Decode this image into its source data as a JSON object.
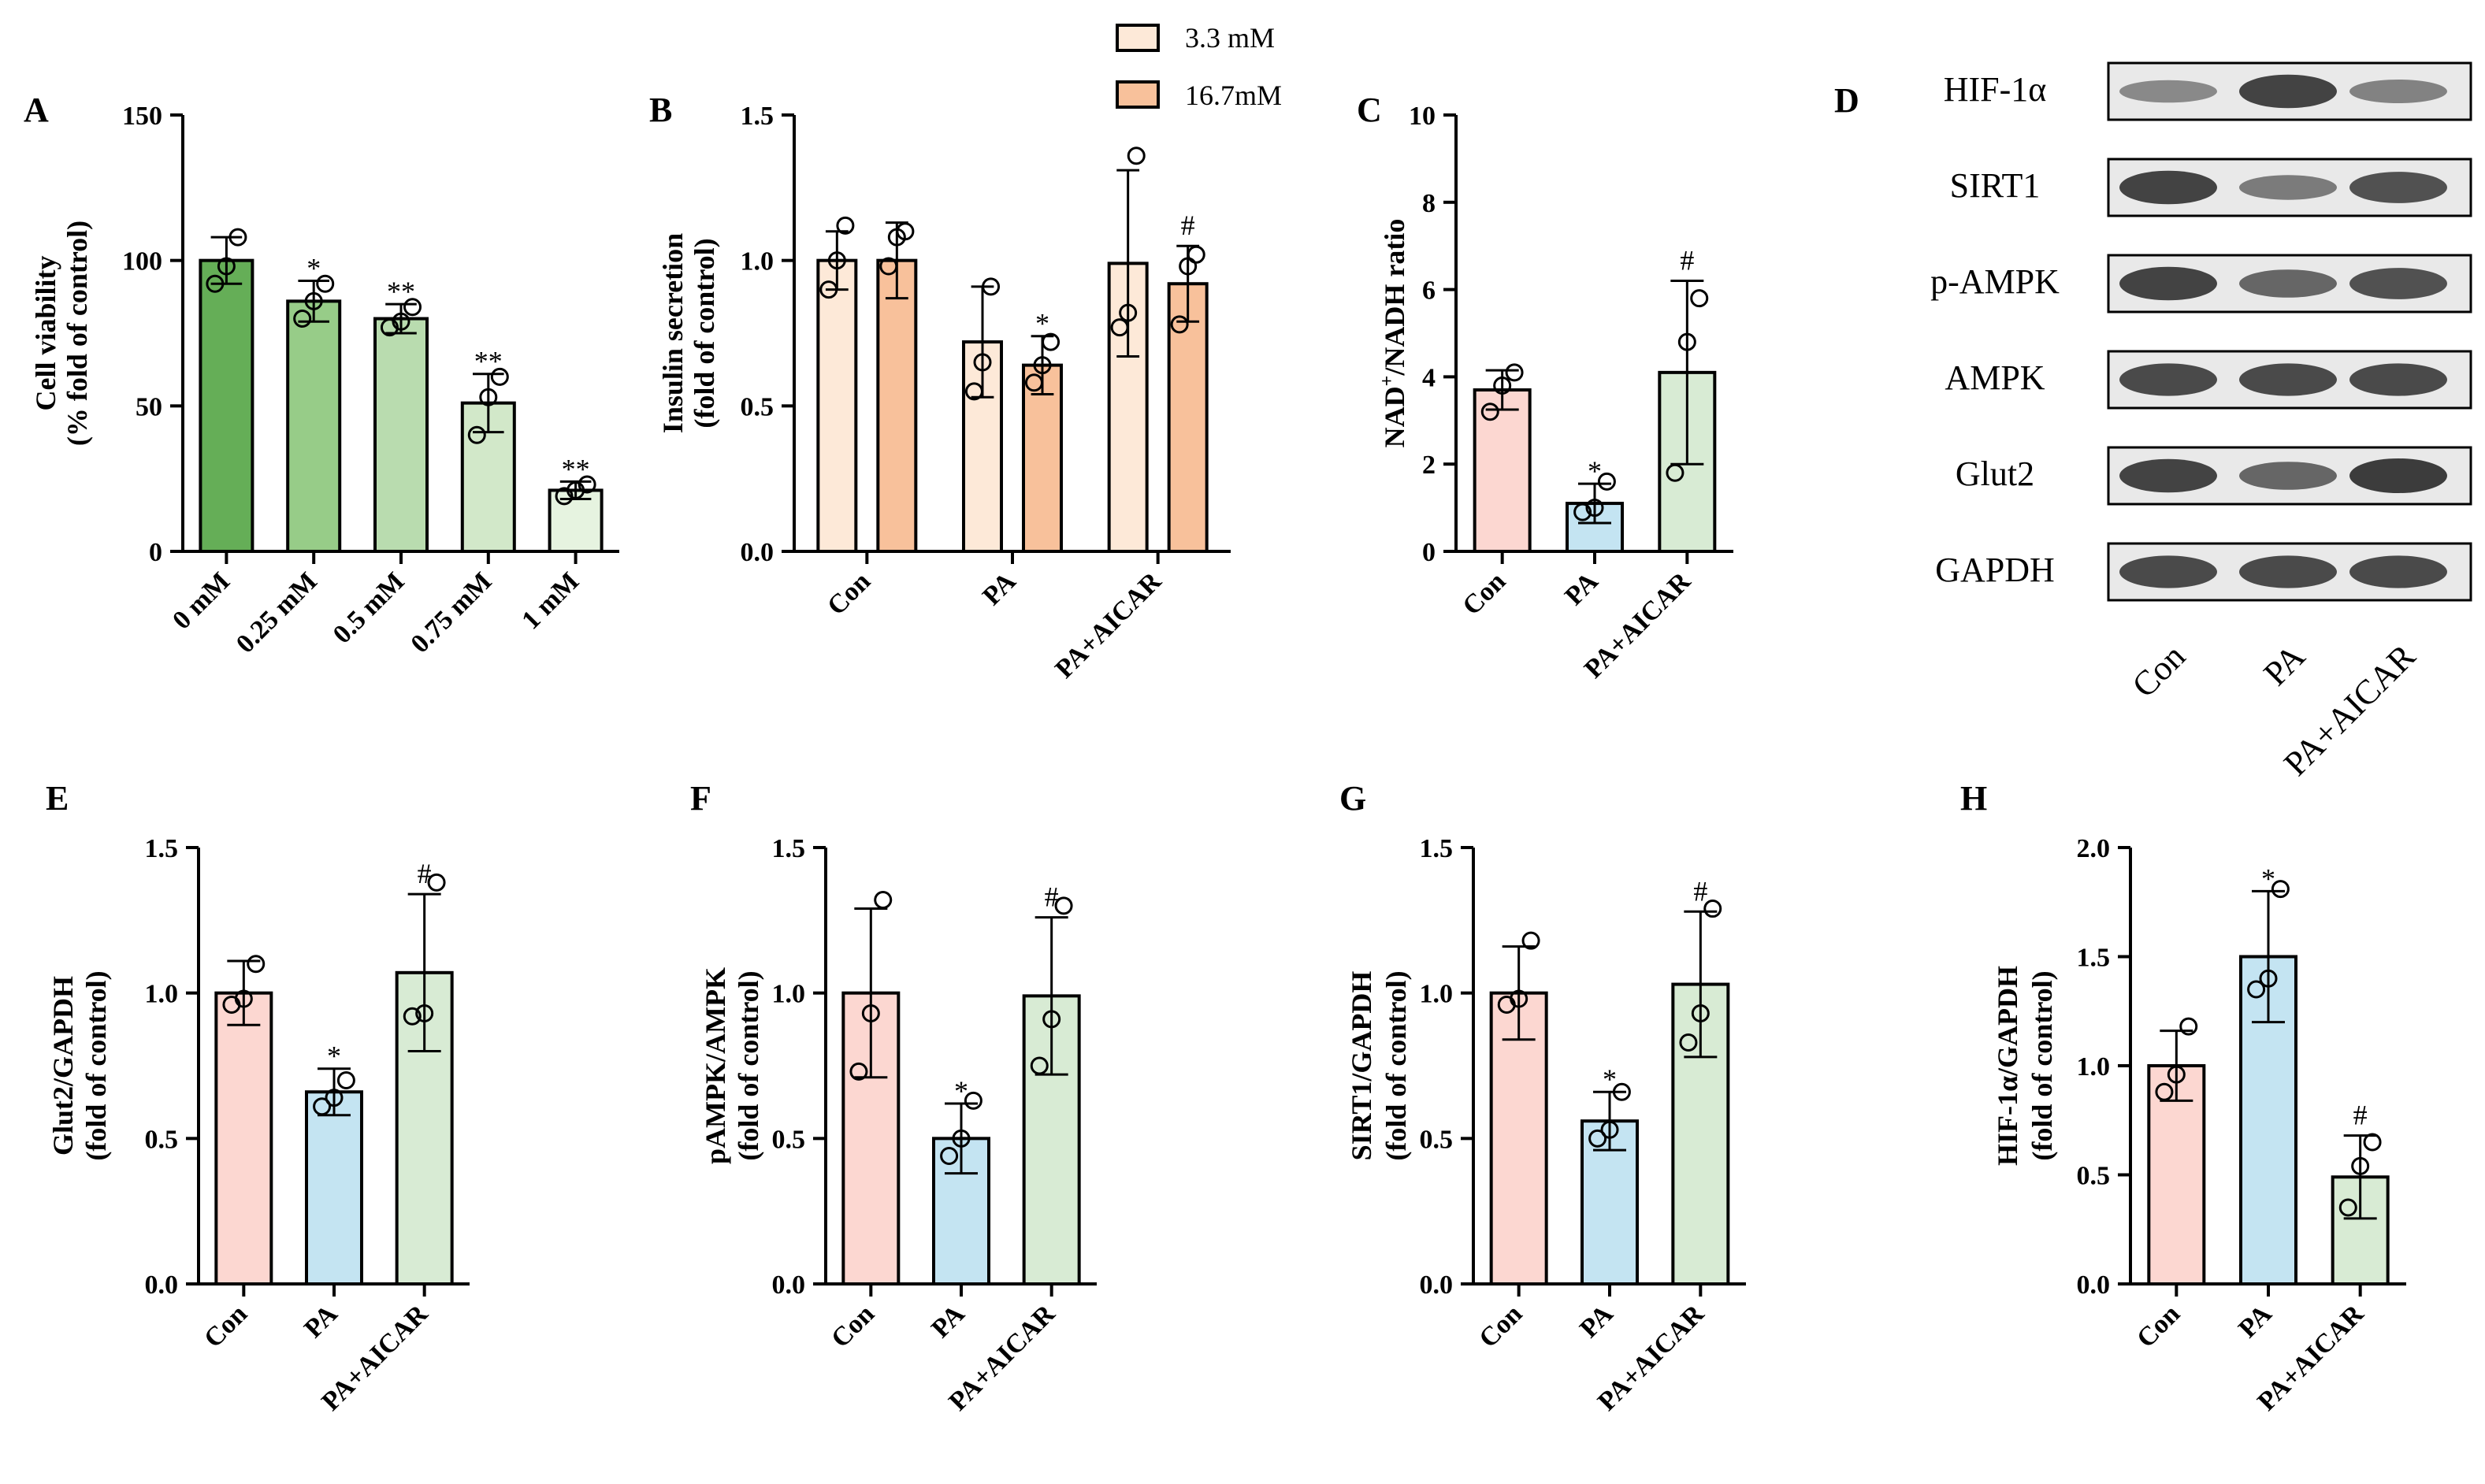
{
  "figure": {
    "colors": {
      "dark_green": "#65ae57",
      "green2": "#97cc88",
      "green3": "#b9dcaf",
      "green4": "#d2e8c9",
      "green5": "#e6f3e0",
      "cream": "#fde9d8",
      "peach": "#f8c19b",
      "pink": "#fcd7d1",
      "blue": "#c4e4f2",
      "mint": "#d8ebd4"
    },
    "legend": {
      "items": [
        {
          "label": "3.3 mM",
          "color": "#fde9d8"
        },
        {
          "label": "16.7mM",
          "color": "#f8c19b"
        }
      ]
    },
    "blot": {
      "letter": "D",
      "rows": [
        "HIF-1α",
        "SIRT1",
        "p-AMPK",
        "AMPK",
        "Glut2",
        "GAPDH"
      ],
      "lanes": [
        "Con",
        "PA",
        "PA+AICAR"
      ],
      "intensity": [
        [
          0.45,
          0.95,
          0.5
        ],
        [
          0.95,
          0.55,
          0.85
        ],
        [
          0.95,
          0.7,
          0.85
        ],
        [
          0.9,
          0.9,
          0.9
        ],
        [
          0.95,
          0.7,
          1.0
        ],
        [
          0.9,
          0.9,
          0.9
        ]
      ]
    }
  },
  "chart_data": [
    {
      "id": "A",
      "letter": "A",
      "type": "bar",
      "ylabel": [
        "Cell viability",
        "(% fold of control)"
      ],
      "ylim": [
        0,
        150
      ],
      "yticks": [
        0,
        50,
        100,
        150
      ],
      "tick_decimals": 0,
      "categories": [
        "0 mM",
        "0.25 mM",
        "0.5 mM",
        "0.75 mM",
        "1 mM"
      ],
      "series": [
        {
          "name": "viability",
          "values": [
            100,
            86,
            80,
            51,
            21
          ],
          "sd": [
            8,
            7,
            5,
            10,
            3
          ],
          "colors": [
            "#65ae57",
            "#97cc88",
            "#b9dcaf",
            "#d2e8c9",
            "#e6f3e0"
          ]
        }
      ],
      "points": [
        [
          92,
          98,
          108
        ],
        [
          80,
          86,
          92
        ],
        [
          77,
          79,
          84
        ],
        [
          40,
          53,
          60
        ],
        [
          19,
          21,
          23
        ]
      ],
      "annotations": [
        "",
        "*",
        "**",
        "**",
        "**"
      ]
    },
    {
      "id": "B",
      "letter": "B",
      "type": "bar",
      "ylabel": [
        "Insulin secretion",
        "(fold of control)"
      ],
      "ylim": [
        0,
        1.5
      ],
      "yticks": [
        0.0,
        0.5,
        1.0,
        1.5
      ],
      "tick_decimals": 1,
      "categories": [
        "Con",
        "PA",
        "PA+AICAR"
      ],
      "series": [
        {
          "name": "3.3 mM",
          "values": [
            1.0,
            0.72,
            0.99
          ],
          "sd": [
            0.1,
            0.19,
            0.32
          ],
          "color": "#fde9d8"
        },
        {
          "name": "16.7mM",
          "values": [
            1.0,
            0.64,
            0.92
          ],
          "sd": [
            0.13,
            0.1,
            0.13
          ],
          "color": "#f8c19b"
        }
      ],
      "points": [
        [
          [
            0.9,
            1.0,
            1.12
          ],
          [
            0.55,
            0.65,
            0.91
          ],
          [
            0.77,
            0.82,
            1.36
          ]
        ],
        [
          [
            0.98,
            1.08,
            1.1
          ],
          [
            0.58,
            0.64,
            0.72
          ],
          [
            0.78,
            0.98,
            1.02
          ]
        ]
      ],
      "annotations": [
        [
          "",
          "",
          ""
        ],
        [
          "",
          "*",
          "#"
        ]
      ]
    },
    {
      "id": "C",
      "letter": "C",
      "type": "bar",
      "ylabel": [
        "NAD⁺/NADH ratio"
      ],
      "ylim": [
        0,
        10
      ],
      "yticks": [
        0,
        2,
        4,
        6,
        8,
        10
      ],
      "tick_decimals": 0,
      "categories": [
        "Con",
        "PA",
        "PA+AICAR"
      ],
      "series": [
        {
          "name": "NAD+/NADH",
          "values": [
            3.7,
            1.1,
            4.1
          ],
          "sd": [
            0.45,
            0.45,
            2.1
          ],
          "colors": [
            "#fcd7d1",
            "#c4e4f2",
            "#d8ebd4"
          ]
        }
      ],
      "points": [
        [
          3.2,
          3.8,
          4.1
        ],
        [
          0.9,
          1.0,
          1.6
        ],
        [
          1.8,
          4.8,
          5.8
        ]
      ],
      "annotations": [
        "",
        "*",
        "#"
      ]
    },
    {
      "id": "E",
      "letter": "E",
      "type": "bar",
      "ylabel": [
        "Glut2/GAPDH",
        "(fold of control)"
      ],
      "ylim": [
        0,
        1.5
      ],
      "yticks": [
        0.0,
        0.5,
        1.0,
        1.5
      ],
      "tick_decimals": 1,
      "categories": [
        "Con",
        "PA",
        "PA+AICAR"
      ],
      "series": [
        {
          "name": "Glut2/GAPDH",
          "values": [
            1.0,
            0.66,
            1.07
          ],
          "sd": [
            0.11,
            0.08,
            0.27
          ],
          "colors": [
            "#fcd7d1",
            "#c4e4f2",
            "#d8ebd4"
          ]
        }
      ],
      "points": [
        [
          0.96,
          0.98,
          1.1
        ],
        [
          0.61,
          0.64,
          0.7
        ],
        [
          0.92,
          0.93,
          1.38
        ]
      ],
      "annotations": [
        "",
        "*",
        "#"
      ]
    },
    {
      "id": "F",
      "letter": "F",
      "type": "bar",
      "ylabel": [
        "pAMPK/AMPK",
        "(fold of control)"
      ],
      "ylim": [
        0,
        1.5
      ],
      "yticks": [
        0.0,
        0.5,
        1.0,
        1.5
      ],
      "tick_decimals": 1,
      "categories": [
        "Con",
        "PA",
        "PA+AICAR"
      ],
      "series": [
        {
          "name": "pAMPK/AMPK",
          "values": [
            1.0,
            0.5,
            0.99
          ],
          "sd": [
            0.29,
            0.12,
            0.27
          ],
          "colors": [
            "#fcd7d1",
            "#c4e4f2",
            "#d8ebd4"
          ]
        }
      ],
      "points": [
        [
          0.73,
          0.93,
          1.32
        ],
        [
          0.44,
          0.5,
          0.63
        ],
        [
          0.75,
          0.91,
          1.3
        ]
      ],
      "annotations": [
        "",
        "*",
        "#"
      ]
    },
    {
      "id": "G",
      "letter": "G",
      "type": "bar",
      "ylabel": [
        "SIRT1/GAPDH",
        "(fold of control)"
      ],
      "ylim": [
        0,
        1.5
      ],
      "yticks": [
        0.0,
        0.5,
        1.0,
        1.5
      ],
      "tick_decimals": 1,
      "categories": [
        "Con",
        "PA",
        "PA+AICAR"
      ],
      "series": [
        {
          "name": "SIRT1/GAPDH",
          "values": [
            1.0,
            0.56,
            1.03
          ],
          "sd": [
            0.16,
            0.1,
            0.25
          ],
          "colors": [
            "#fcd7d1",
            "#c4e4f2",
            "#d8ebd4"
          ]
        }
      ],
      "points": [
        [
          0.96,
          0.98,
          1.18
        ],
        [
          0.5,
          0.53,
          0.66
        ],
        [
          0.83,
          0.93,
          1.29
        ]
      ],
      "annotations": [
        "",
        "*",
        "#"
      ]
    },
    {
      "id": "H",
      "letter": "H",
      "type": "bar",
      "ylabel": [
        "HIF-1α/GAPDH",
        "(fold of control)"
      ],
      "ylim": [
        0,
        2.0
      ],
      "yticks": [
        0.0,
        0.5,
        1.0,
        1.5,
        2.0
      ],
      "tick_decimals": 1,
      "categories": [
        "Con",
        "PA",
        "PA+AICAR"
      ],
      "series": [
        {
          "name": "HIF-1α/GAPDH",
          "values": [
            1.0,
            1.5,
            0.49
          ],
          "sd": [
            0.16,
            0.3,
            0.19
          ],
          "colors": [
            "#fcd7d1",
            "#c4e4f2",
            "#d8ebd4"
          ]
        }
      ],
      "points": [
        [
          0.88,
          0.96,
          1.18
        ],
        [
          1.35,
          1.4,
          1.81
        ],
        [
          0.35,
          0.54,
          0.65
        ]
      ],
      "annotations": [
        "",
        "*",
        "#"
      ]
    }
  ]
}
